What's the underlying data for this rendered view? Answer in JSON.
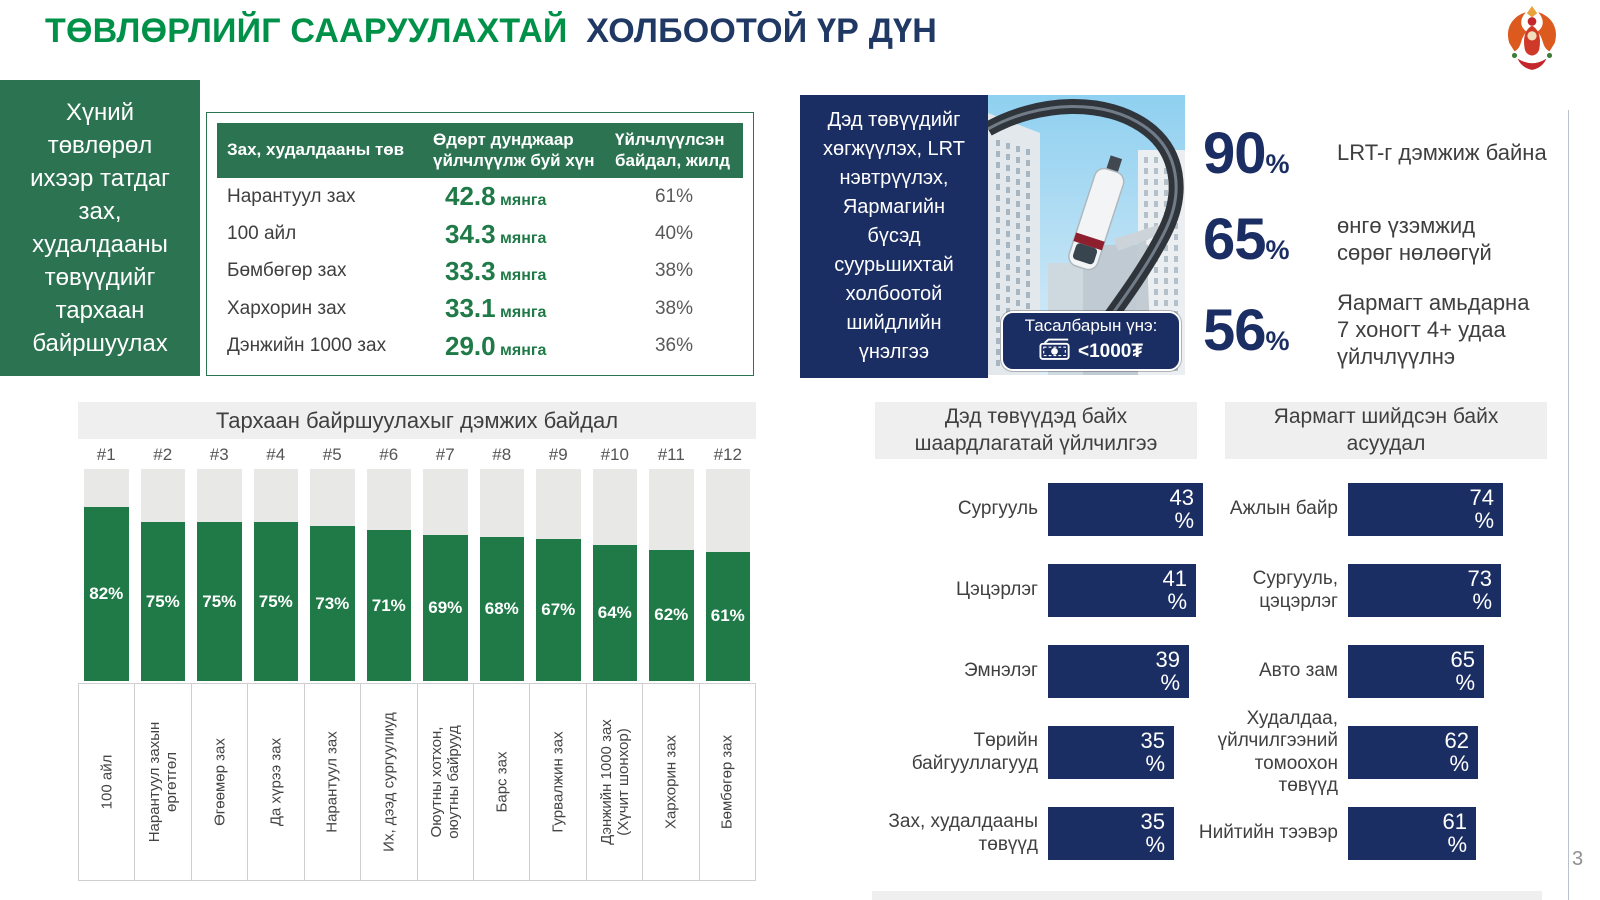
{
  "slide": {
    "page_number": "3"
  },
  "colors": {
    "green_title": "#009149",
    "dark_green": "#2b7351",
    "bar_green": "#1f7a47",
    "navy": "#1b2e63",
    "title_navy": "#1f3864",
    "band_gray": "#efefef",
    "column_gray": "#e8e8e6"
  },
  "header": {
    "title_green": "ТӨВЛӨРЛИЙГ СААРУУЛАХТАЙ",
    "title_navy": "ХОЛБООТОЙ ҮР ДҮН",
    "logo": "ulaanbaatar-city-emblem"
  },
  "left_panel": {
    "lead_text": "Хүний төвлөрөл ихээр татдаг зах, худалдааны төвүүдийг тархаан байршуулах"
  },
  "right_panel": {
    "lead_text": "Дэд төвүүдийг\nхөгжүүлэх, LRT\nнэвтрүүлэх,\nЯармагийн\nбүсэд\nсуурьшихтай\nхолбоотой\nшийдлийн\nүнэлгээ"
  },
  "photo": {
    "subject": "monorail-train-between-buildings",
    "caption_label": "Тасалбарын үнэ:",
    "caption_value": "<1000₮",
    "caption_icon": "banknote-icon"
  },
  "stats": {
    "items": [
      {
        "value": "90",
        "unit": "%",
        "label": "LRT-г дэмжиж байна"
      },
      {
        "value": "65",
        "unit": "%",
        "label": "өнгө үзэмжид\nсөрөг нөлөөгүй"
      },
      {
        "value": "56",
        "unit": "%",
        "label": "Яармагт амьдарна\n7 хоногт 4+ удаа\nүйлчлүүлнэ"
      }
    ]
  },
  "chart_data": [
    {
      "type": "table",
      "headers": [
        "Зах, худалдааны төв",
        "Өдөрт дунджаар\nүйлчлүүлж буй хүн",
        "Үйлчлүүлсэн\nбайдал, жилд"
      ],
      "rows": [
        {
          "name": "Нарантуул зах",
          "value": "42.8",
          "unit": "мянга",
          "share": "61%"
        },
        {
          "name": "100 айл",
          "value": "34.3",
          "unit": "мянга",
          "share": "40%"
        },
        {
          "name": "Бөмбөгөр зах",
          "value": "33.3",
          "unit": "мянга",
          "share": "38%"
        },
        {
          "name": "Хархорин зах",
          "value": "33.1",
          "unit": "мянга",
          "share": "38%"
        },
        {
          "name": "Дэнжийн 1000 зах",
          "value": "29.0",
          "unit": "мянга",
          "share": "36%"
        }
      ]
    },
    {
      "type": "bar",
      "orientation": "vertical",
      "title": "Тархаан байршуулахыг дэмжих байдал",
      "ranks": [
        "#1",
        "#2",
        "#3",
        "#4",
        "#5",
        "#6",
        "#7",
        "#8",
        "#9",
        "#10",
        "#11",
        "#12"
      ],
      "categories": [
        "100 айл",
        "Нарантуул захын\nөргөтгөл",
        "Өгөөмөр зах",
        "Да хүрээ зах",
        "Нарантуул зах",
        "Их, дээд сургуулиуд",
        "Оюутны хотхон,\nоюутны байрууд",
        "Барс зах",
        "Гурвалжин зах",
        "Дэнжийн 1000 зах\n(Хүчит шонхор)",
        "Хархорин зах",
        "Бөмбөгөр зах"
      ],
      "values": [
        82,
        75,
        75,
        75,
        73,
        71,
        69,
        68,
        67,
        64,
        62,
        61
      ],
      "unit": "%",
      "ylim": [
        0,
        100
      ],
      "grid": false,
      "legend": false
    },
    {
      "type": "bar",
      "orientation": "horizontal",
      "title": "Дэд төвүүдэд байх\nшаардлагатай үйлчилгээ",
      "categories": [
        "Сургууль",
        "Цэцэрлэг",
        "Эмнэлэг",
        "Төрийн байгууллагууд",
        "Зах, худалдааны\nтөвүүд"
      ],
      "values": [
        43,
        41,
        39,
        35,
        35
      ],
      "unit": "%",
      "xlim": [
        0,
        45
      ]
    },
    {
      "type": "bar",
      "orientation": "horizontal",
      "title": "Яармагт шийдсэн байх\nасуудал",
      "categories": [
        "Ажлын байр",
        "Сургууль,\nцэцэрлэг",
        "Авто зам",
        "Худалдаа,\nүйлчилгээний\nтомоохон төвүүд",
        "Нийтийн тээвэр"
      ],
      "values": [
        74,
        73,
        65,
        62,
        61
      ],
      "unit": "%",
      "xlim": [
        0,
        75
      ]
    }
  ]
}
